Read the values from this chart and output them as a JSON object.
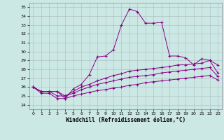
{
  "xlabel": "Windchill (Refroidissement éolien,°C)",
  "bg_color": "#cce8e4",
  "line_color": "#880088",
  "ylim": [
    23.5,
    35.5
  ],
  "xlim": [
    -0.5,
    23.5
  ],
  "yticks": [
    24,
    25,
    26,
    27,
    28,
    29,
    30,
    31,
    32,
    33,
    34,
    35
  ],
  "xticks": [
    0,
    1,
    2,
    3,
    4,
    5,
    6,
    7,
    8,
    9,
    10,
    11,
    12,
    13,
    14,
    15,
    16,
    17,
    18,
    19,
    20,
    21,
    22,
    23
  ],
  "line1": [
    26.0,
    25.5,
    25.5,
    25.5,
    24.7,
    25.8,
    26.3,
    27.4,
    29.4,
    29.5,
    30.2,
    33.0,
    34.8,
    34.5,
    33.2,
    33.2,
    33.3,
    29.5,
    29.5,
    29.3,
    28.5,
    29.2,
    29.0,
    28.5
  ],
  "line2": [
    26.0,
    25.5,
    25.5,
    25.5,
    25.0,
    25.5,
    26.0,
    26.3,
    26.7,
    27.0,
    27.3,
    27.5,
    27.8,
    27.9,
    28.0,
    28.1,
    28.2,
    28.3,
    28.5,
    28.5,
    28.6,
    28.7,
    29.0,
    27.6
  ],
  "line3": [
    26.0,
    25.5,
    25.5,
    25.0,
    25.0,
    25.3,
    25.7,
    26.0,
    26.3,
    26.5,
    26.7,
    26.9,
    27.1,
    27.2,
    27.3,
    27.4,
    27.6,
    27.7,
    27.8,
    27.9,
    28.0,
    28.1,
    28.2,
    27.2
  ],
  "line4": [
    26.0,
    25.3,
    25.3,
    24.7,
    24.7,
    25.0,
    25.2,
    25.4,
    25.6,
    25.7,
    25.9,
    26.0,
    26.2,
    26.3,
    26.5,
    26.6,
    26.7,
    26.8,
    26.9,
    27.0,
    27.1,
    27.2,
    27.3,
    26.8
  ]
}
